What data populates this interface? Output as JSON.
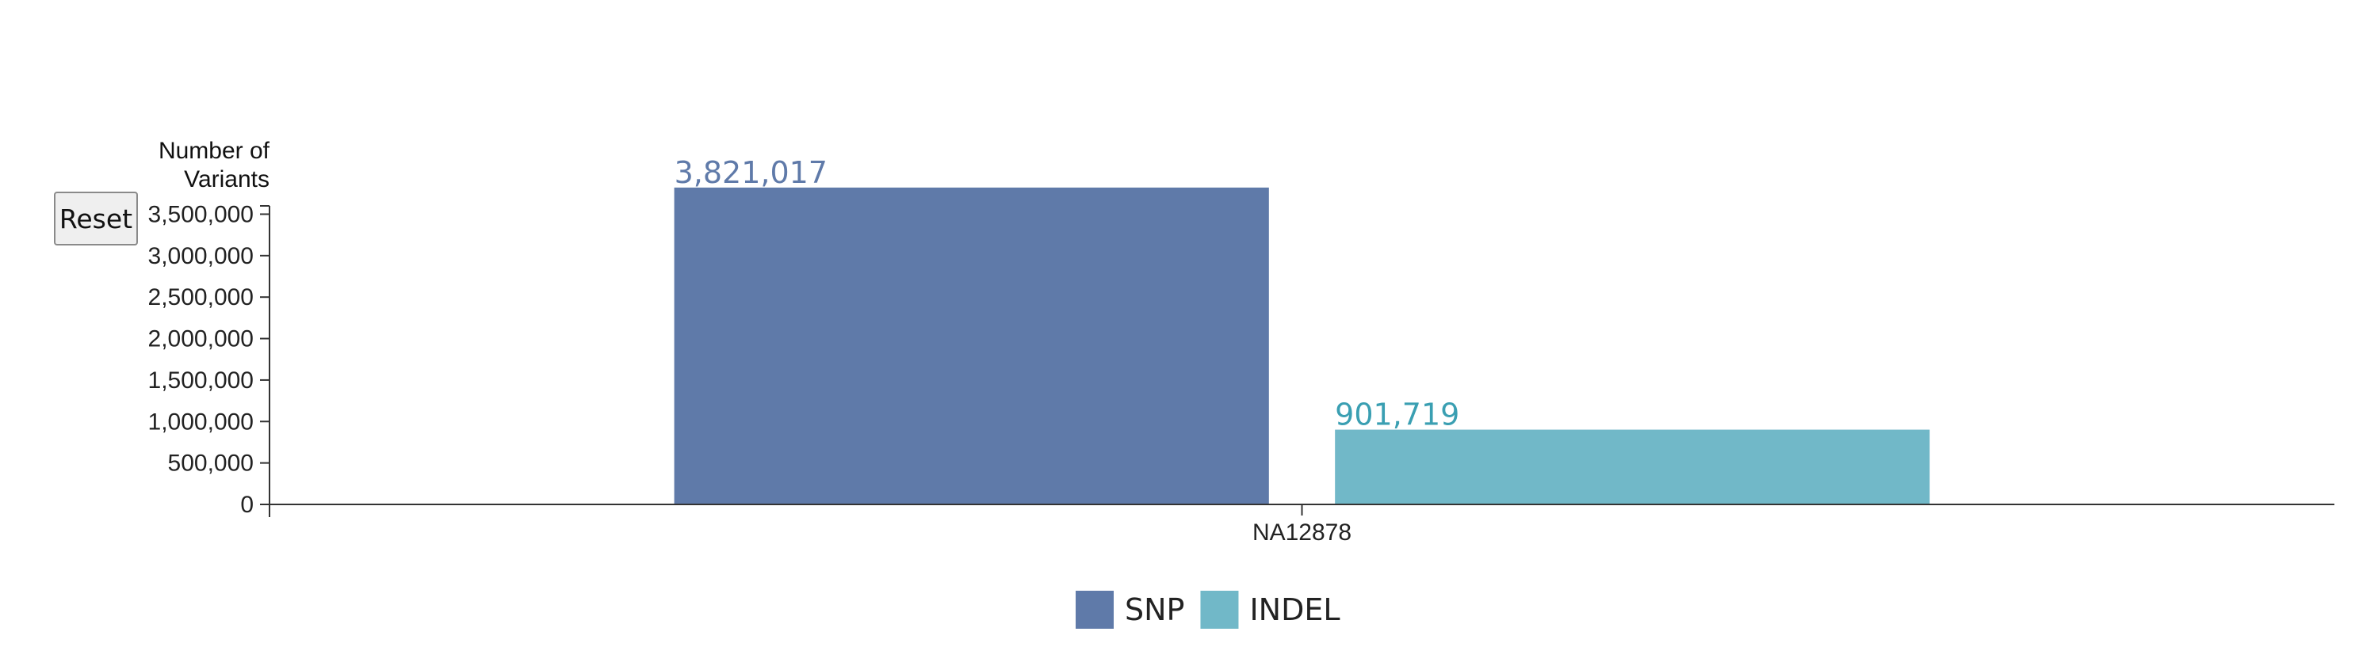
{
  "reset_label": "Reset",
  "chart_data": {
    "type": "bar",
    "title": "",
    "xlabel": "",
    "ylabel": "Number of Variants",
    "ylabel_lines": [
      "Number of",
      "Variants"
    ],
    "categories": [
      "NA12878"
    ],
    "series": [
      {
        "name": "SNP",
        "values": [
          3821017
        ],
        "value_labels": [
          "3,821,017"
        ],
        "color": "#5f7aa9"
      },
      {
        "name": "INDEL",
        "values": [
          901719
        ],
        "value_labels": [
          "901,719"
        ],
        "color": "#71b8c8",
        "label_color": "#3a9fb2"
      }
    ],
    "yticks": [
      0,
      500000,
      1000000,
      1500000,
      2000000,
      2500000,
      3000000,
      3500000
    ],
    "ytick_labels": [
      "0",
      "500,000",
      "1,000,000",
      "1,500,000",
      "2,000,000",
      "2,500,000",
      "3,000,000",
      "3,500,000"
    ],
    "ylim": [
      0,
      3500000
    ],
    "grid": false,
    "legend_position": "bottom-center"
  }
}
